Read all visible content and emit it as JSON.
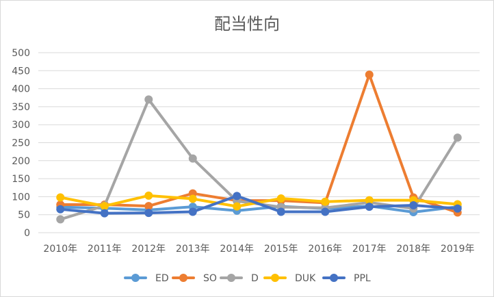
{
  "chart_data": {
    "type": "line",
    "title": "配当性向",
    "xlabel": "",
    "ylabel": "",
    "ylim": [
      0,
      500
    ],
    "y_ticks": [
      0,
      50,
      100,
      150,
      200,
      250,
      300,
      350,
      400,
      450,
      500
    ],
    "grid": true,
    "legend_position": "bottom",
    "categories": [
      "2010年",
      "2011年",
      "2012年",
      "2013年",
      "2014年",
      "2015年",
      "2016年",
      "2017年",
      "2018年",
      "2019年"
    ],
    "series": [
      {
        "name": "ED",
        "color": "#5b9bd5",
        "values": [
          71,
          68,
          63,
          72,
          61,
          73,
          67,
          74,
          57,
          72
        ]
      },
      {
        "name": "SO",
        "color": "#ed7d31",
        "values": [
          78,
          78,
          74,
          109,
          89,
          89,
          83,
          439,
          98,
          56
        ]
      },
      {
        "name": "D",
        "color": "#a5a5a5",
        "values": [
          37,
          75,
          370,
          206,
          88,
          71,
          69,
          84,
          67,
          264
        ]
      },
      {
        "name": "DUK",
        "color": "#ffc000",
        "values": [
          98,
          74,
          103,
          94,
          73,
          95,
          86,
          90,
          90,
          79
        ]
      },
      {
        "name": "PPL",
        "color": "#4472c4",
        "values": [
          65,
          54,
          55,
          58,
          102,
          58,
          58,
          72,
          76,
          67
        ]
      }
    ]
  }
}
